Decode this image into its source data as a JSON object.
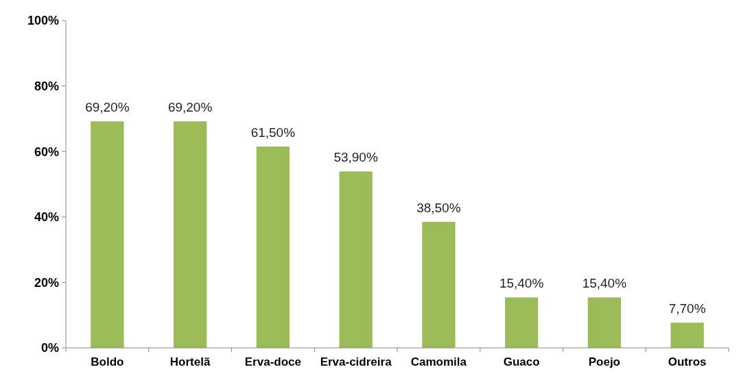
{
  "chart_data": {
    "type": "bar",
    "categories": [
      "Boldo",
      "Hortelã",
      "Erva-doce",
      "Erva-cidreira",
      "Camomila",
      "Guaco",
      "Poejo",
      "Outros"
    ],
    "values": [
      69.2,
      69.2,
      61.5,
      53.9,
      38.5,
      15.4,
      15.4,
      7.7
    ],
    "value_labels": [
      "69,20%",
      "69,20%",
      "61,50%",
      "53,90%",
      "38,50%",
      "15,40%",
      "15,40%",
      "7,70%"
    ],
    "color": "#9bbb59",
    "ylim": [
      0,
      100
    ],
    "yticks": [
      {
        "value": 0,
        "label": "0%"
      },
      {
        "value": 20,
        "label": "20%"
      },
      {
        "value": 40,
        "label": "40%"
      },
      {
        "value": 60,
        "label": "60%"
      },
      {
        "value": 80,
        "label": "80%"
      },
      {
        "value": 100,
        "label": "100%"
      }
    ],
    "grid": false
  }
}
